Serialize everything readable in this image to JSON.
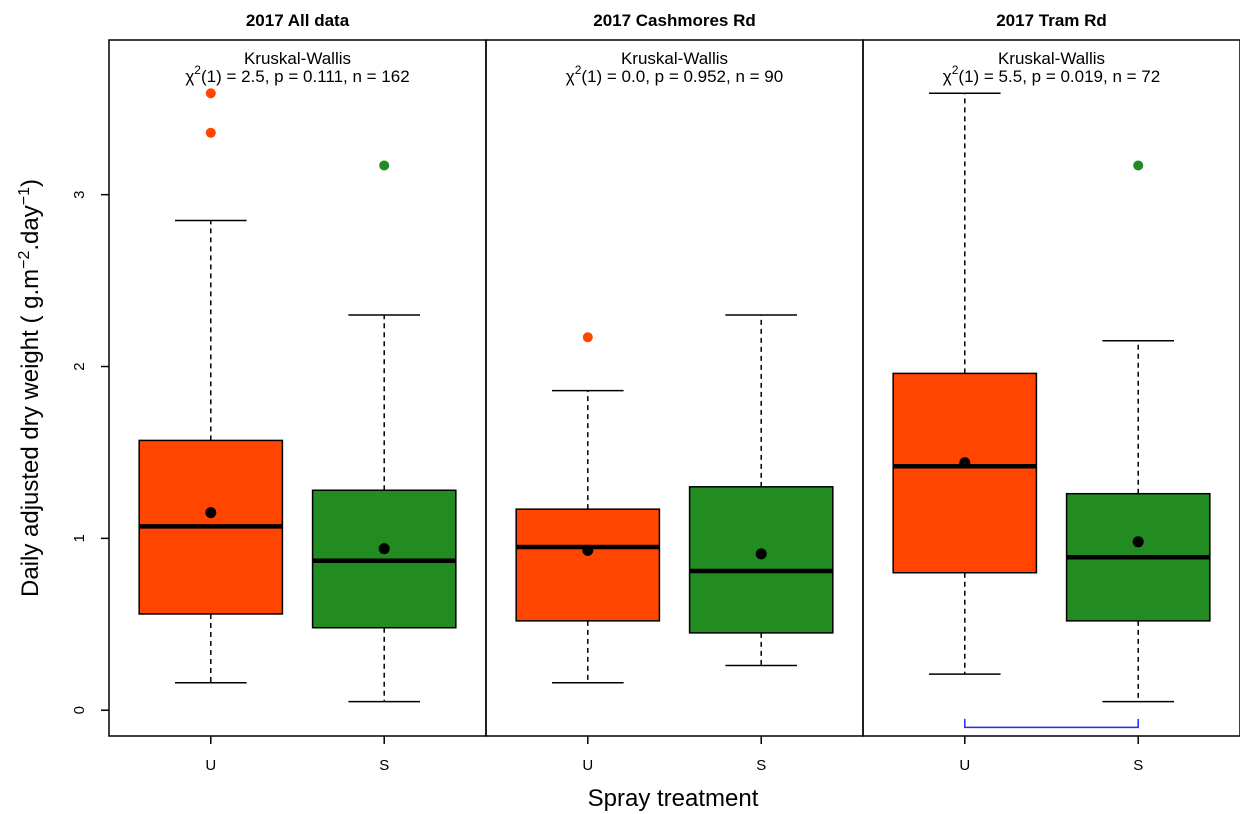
{
  "chart_data": {
    "type": "boxplot",
    "xlabel": "Spray treatment",
    "ylabel": "Daily adjusted dry weight ( g.m",
    "ylabel_sup1": "−2",
    "ylabel_mid": ".day",
    "ylabel_sup2": "−1",
    "ylabel_end": ")",
    "ylim": [
      -0.15,
      3.9
    ],
    "yticks": [
      "0",
      "1",
      "2",
      "3"
    ],
    "categories": [
      "U",
      "S"
    ],
    "colors": {
      "U": "#ff4500",
      "S": "#228b22"
    },
    "grid": false,
    "panels": [
      {
        "title": "2017 All data",
        "test": "Kruskal-Wallis",
        "stat_chi": "χ",
        "stat_sup": "2",
        "stat_rest": "(1) = 2.5, p = 0.111, n = 162",
        "boxes": [
          {
            "group": "U",
            "min": 0.16,
            "q1": 0.56,
            "median": 1.07,
            "q3": 1.57,
            "max": 2.85,
            "mean": 1.15,
            "outliers": [
              3.36,
              3.59
            ]
          },
          {
            "group": "S",
            "min": 0.05,
            "q1": 0.48,
            "median": 0.87,
            "q3": 1.28,
            "max": 2.3,
            "mean": 0.94,
            "outliers": [
              3.17
            ]
          }
        ]
      },
      {
        "title": "2017 Cashmores Rd",
        "test": "Kruskal-Wallis",
        "stat_chi": "χ",
        "stat_sup": "2",
        "stat_rest": "(1) = 0.0, p = 0.952, n = 90",
        "boxes": [
          {
            "group": "U",
            "min": 0.16,
            "q1": 0.52,
            "median": 0.95,
            "q3": 1.17,
            "max": 1.86,
            "mean": 0.93,
            "outliers": [
              2.17
            ]
          },
          {
            "group": "S",
            "min": 0.26,
            "q1": 0.45,
            "median": 0.81,
            "q3": 1.3,
            "max": 2.3,
            "mean": 0.91,
            "outliers": []
          }
        ]
      },
      {
        "title": "2017 Tram Rd",
        "test": "Kruskal-Wallis",
        "stat_chi": "χ",
        "stat_sup": "2",
        "stat_rest": "(1) = 5.5, p = 0.019, n = 72",
        "boxes": [
          {
            "group": "U",
            "min": 0.21,
            "q1": 0.8,
            "median": 1.42,
            "q3": 1.96,
            "max": 3.59,
            "mean": 1.44,
            "outliers": []
          },
          {
            "group": "S",
            "min": 0.05,
            "q1": 0.52,
            "median": 0.89,
            "q3": 1.26,
            "max": 2.15,
            "mean": 0.98,
            "outliers": [
              3.17
            ]
          }
        ],
        "significance_bracket": true
      }
    ]
  }
}
